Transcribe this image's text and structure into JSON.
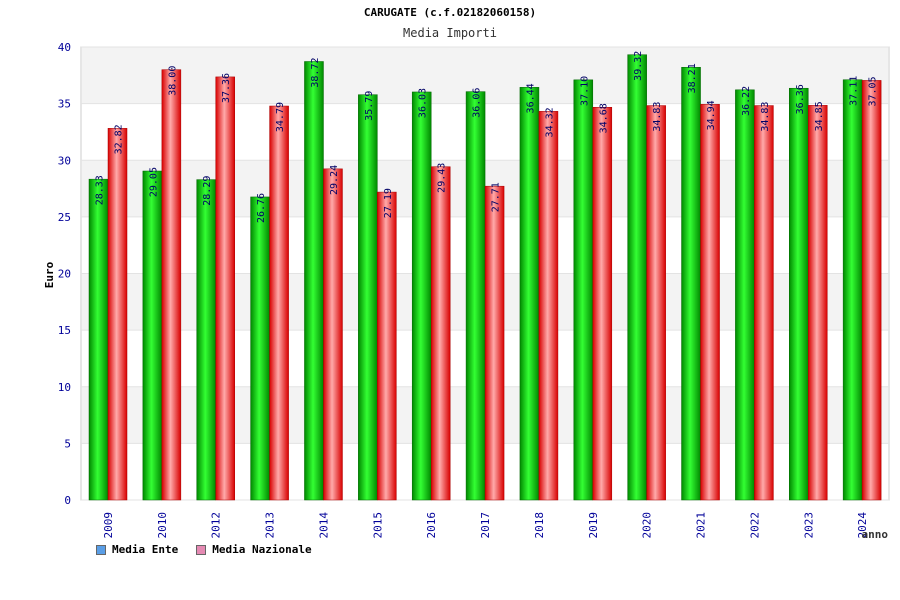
{
  "chart_data": {
    "type": "bar",
    "title": "CARUGATE (c.f.02182060158)",
    "subtitle": "Media Importi",
    "xlabel": "anno",
    "ylabel": "Euro",
    "ylim": [
      0,
      40
    ],
    "yticks": [
      0,
      5,
      10,
      15,
      20,
      25,
      30,
      35,
      40
    ],
    "categories": [
      "2009",
      "2010",
      "2012",
      "2013",
      "2014",
      "2015",
      "2016",
      "2017",
      "2018",
      "2019",
      "2020",
      "2021",
      "2022",
      "2023",
      "2024"
    ],
    "series": [
      {
        "name": "Media Ente",
        "labels": [
          "28.33",
          "29.05",
          "28.29",
          "26.76",
          "38.72",
          "35.79",
          "36.03",
          "36.06",
          "36.44",
          "37.10",
          "39.32",
          "38.21",
          "36.22",
          "36.36",
          "37.11"
        ],
        "values": [
          28.33,
          29.05,
          28.29,
          26.76,
          38.72,
          35.79,
          36.03,
          36.06,
          36.44,
          37.1,
          39.32,
          38.21,
          36.22,
          36.36,
          37.11
        ]
      },
      {
        "name": "Media Nazionale",
        "labels": [
          "32.82",
          "38.00",
          "37.36",
          "34.79",
          "29.24",
          "27.19",
          "29.43",
          "27.71",
          "34.32",
          "34.68",
          "34.83",
          "34.94",
          "34.83",
          "34.85",
          "37.05"
        ],
        "values": [
          32.82,
          38.0,
          37.36,
          34.79,
          29.24,
          27.19,
          29.43,
          27.71,
          34.32,
          34.68,
          34.83,
          34.94,
          34.83,
          34.85,
          37.05
        ]
      }
    ],
    "legend_position": "bottom-left",
    "grid": true
  },
  "colors": {
    "ente_dark": "#008800",
    "ente_light": "#33ff33",
    "naz_dark": "#d80000",
    "naz_light": "#ffaaaa",
    "swatch_ente": "#5a9ee6",
    "swatch_naz": "#e58ab3",
    "tick_label": "#000099",
    "value_label": "#000066",
    "band": "#f3f3f3",
    "grid": "#e3e3e3"
  }
}
